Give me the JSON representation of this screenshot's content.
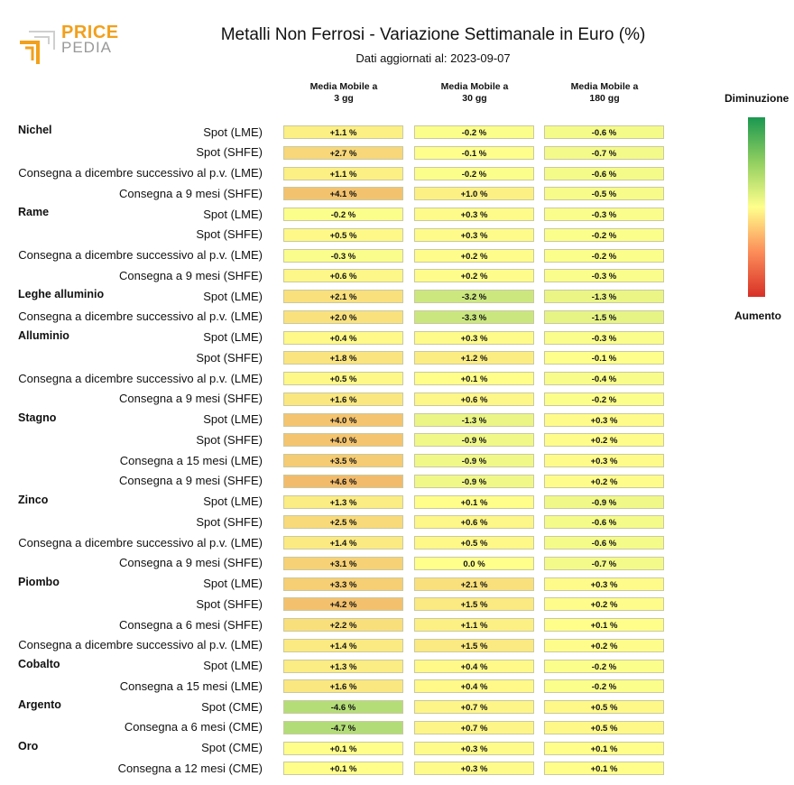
{
  "logo": {
    "line1": "PRICE",
    "line2": "PEDIA"
  },
  "chart_data": {
    "type": "table",
    "title": "Metalli Non Ferrosi - Variazione Settimanale in Euro (%)",
    "subtitle": "Dati aggiornati al: 2023-09-07",
    "columns": [
      {
        "line1": "Media Mobile a",
        "line2": "3 gg"
      },
      {
        "line1": "Media Mobile a",
        "line2": "30 gg"
      },
      {
        "line1": "Media Mobile a",
        "line2": "180 gg"
      }
    ],
    "legend": {
      "top": "Diminuzione",
      "bottom": "Aumento",
      "top_color": "#1a9850",
      "mid_color": "#ffff8c",
      "bottom_color": "#d73027"
    },
    "groups": [
      {
        "metal": "Nichel",
        "rows": [
          {
            "label": "Spot (LME)",
            "values": [
              1.1,
              -0.2,
              -0.6
            ],
            "text": [
              "+1.1 %",
              "-0.2 %",
              "-0.6 %"
            ]
          },
          {
            "label": "Spot (SHFE)",
            "values": [
              2.7,
              -0.1,
              -0.7
            ],
            "text": [
              "+2.7 %",
              "-0.1 %",
              "-0.7 %"
            ]
          },
          {
            "label": "Consegna a dicembre successivo al p.v. (LME)",
            "values": [
              1.1,
              -0.2,
              -0.6
            ],
            "text": [
              "+1.1 %",
              "-0.2 %",
              "-0.6 %"
            ]
          },
          {
            "label": "Consegna a 9 mesi (SHFE)",
            "values": [
              4.1,
              1.0,
              -0.5
            ],
            "text": [
              "+4.1 %",
              "+1.0 %",
              "-0.5 %"
            ]
          }
        ]
      },
      {
        "metal": "Rame",
        "rows": [
          {
            "label": "Spot (LME)",
            "values": [
              -0.2,
              0.3,
              -0.3
            ],
            "text": [
              "-0.2 %",
              "+0.3 %",
              "-0.3 %"
            ]
          },
          {
            "label": "Spot (SHFE)",
            "values": [
              0.5,
              0.3,
              -0.2
            ],
            "text": [
              "+0.5 %",
              "+0.3 %",
              "-0.2 %"
            ]
          },
          {
            "label": "Consegna a dicembre successivo al p.v. (LME)",
            "values": [
              -0.3,
              0.2,
              -0.2
            ],
            "text": [
              "-0.3 %",
              "+0.2 %",
              "-0.2 %"
            ]
          },
          {
            "label": "Consegna a 9 mesi (SHFE)",
            "values": [
              0.6,
              0.2,
              -0.3
            ],
            "text": [
              "+0.6 %",
              "+0.2 %",
              "-0.3 %"
            ]
          }
        ]
      },
      {
        "metal": "Leghe alluminio",
        "rows": [
          {
            "label": "Spot (LME)",
            "values": [
              2.1,
              -3.2,
              -1.3
            ],
            "text": [
              "+2.1 %",
              "-3.2 %",
              "-1.3 %"
            ]
          },
          {
            "label": "Consegna a dicembre successivo al p.v. (LME)",
            "values": [
              2.0,
              -3.3,
              -1.5
            ],
            "text": [
              "+2.0 %",
              "-3.3 %",
              "-1.5 %"
            ]
          }
        ]
      },
      {
        "metal": "Alluminio",
        "rows": [
          {
            "label": "Spot (LME)",
            "values": [
              0.4,
              0.3,
              -0.3
            ],
            "text": [
              "+0.4 %",
              "+0.3 %",
              "-0.3 %"
            ]
          },
          {
            "label": "Spot (SHFE)",
            "values": [
              1.8,
              1.2,
              -0.1
            ],
            "text": [
              "+1.8 %",
              "+1.2 %",
              "-0.1 %"
            ]
          },
          {
            "label": "Consegna a dicembre successivo al p.v. (LME)",
            "values": [
              0.5,
              0.1,
              -0.4
            ],
            "text": [
              "+0.5 %",
              "+0.1 %",
              "-0.4 %"
            ]
          },
          {
            "label": "Consegna a 9 mesi (SHFE)",
            "values": [
              1.6,
              0.6,
              -0.2
            ],
            "text": [
              "+1.6 %",
              "+0.6 %",
              "-0.2 %"
            ]
          }
        ]
      },
      {
        "metal": "Stagno",
        "rows": [
          {
            "label": "Spot (LME)",
            "values": [
              4.0,
              -1.3,
              0.3
            ],
            "text": [
              "+4.0 %",
              "-1.3 %",
              "+0.3 %"
            ]
          },
          {
            "label": "Spot (SHFE)",
            "values": [
              4.0,
              -0.9,
              0.2
            ],
            "text": [
              "+4.0 %",
              "-0.9 %",
              "+0.2 %"
            ]
          },
          {
            "label": "Consegna a 15 mesi (LME)",
            "values": [
              3.5,
              -0.9,
              0.3
            ],
            "text": [
              "+3.5 %",
              "-0.9 %",
              "+0.3 %"
            ]
          },
          {
            "label": "Consegna a 9 mesi (SHFE)",
            "values": [
              4.6,
              -0.9,
              0.2
            ],
            "text": [
              "+4.6 %",
              "-0.9 %",
              "+0.2 %"
            ]
          }
        ]
      },
      {
        "metal": "Zinco",
        "rows": [
          {
            "label": "Spot (LME)",
            "values": [
              1.3,
              0.1,
              -0.9
            ],
            "text": [
              "+1.3 %",
              "+0.1 %",
              "-0.9 %"
            ]
          },
          {
            "label": "Spot (SHFE)",
            "values": [
              2.5,
              0.6,
              -0.6
            ],
            "text": [
              "+2.5 %",
              "+0.6 %",
              "-0.6 %"
            ]
          },
          {
            "label": "Consegna a dicembre successivo al p.v. (LME)",
            "values": [
              1.4,
              0.5,
              -0.6
            ],
            "text": [
              "+1.4 %",
              "+0.5 %",
              "-0.6 %"
            ]
          },
          {
            "label": "Consegna a 9 mesi (SHFE)",
            "values": [
              3.1,
              0.0,
              -0.7
            ],
            "text": [
              "+3.1 %",
              "0.0 %",
              "-0.7 %"
            ]
          }
        ]
      },
      {
        "metal": "Piombo",
        "rows": [
          {
            "label": "Spot (LME)",
            "values": [
              3.3,
              2.1,
              0.3
            ],
            "text": [
              "+3.3 %",
              "+2.1 %",
              "+0.3 %"
            ]
          },
          {
            "label": "Spot (SHFE)",
            "values": [
              4.2,
              1.5,
              0.2
            ],
            "text": [
              "+4.2 %",
              "+1.5 %",
              "+0.2 %"
            ]
          },
          {
            "label": "Consegna a 6 mesi (SHFE)",
            "values": [
              2.2,
              1.1,
              0.1
            ],
            "text": [
              "+2.2 %",
              "+1.1 %",
              "+0.1 %"
            ]
          },
          {
            "label": "Consegna a dicembre successivo al p.v. (LME)",
            "values": [
              1.4,
              1.5,
              0.2
            ],
            "text": [
              "+1.4 %",
              "+1.5 %",
              "+0.2 %"
            ]
          }
        ]
      },
      {
        "metal": "Cobalto",
        "rows": [
          {
            "label": "Spot (LME)",
            "values": [
              1.3,
              0.4,
              -0.2
            ],
            "text": [
              "+1.3 %",
              "+0.4 %",
              "-0.2 %"
            ]
          },
          {
            "label": "Consegna a 15 mesi (LME)",
            "values": [
              1.6,
              0.4,
              -0.2
            ],
            "text": [
              "+1.6 %",
              "+0.4 %",
              "-0.2 %"
            ]
          }
        ]
      },
      {
        "metal": "Argento",
        "rows": [
          {
            "label": "Spot (CME)",
            "values": [
              -4.6,
              0.7,
              0.5
            ],
            "text": [
              "-4.6 %",
              "+0.7 %",
              "+0.5 %"
            ]
          },
          {
            "label": "Consegna a 6 mesi (CME)",
            "values": [
              -4.7,
              0.7,
              0.5
            ],
            "text": [
              "-4.7 %",
              "+0.7 %",
              "+0.5 %"
            ]
          }
        ]
      },
      {
        "metal": "Oro",
        "rows": [
          {
            "label": "Spot (CME)",
            "values": [
              0.1,
              0.3,
              0.1
            ],
            "text": [
              "+0.1 %",
              "+0.3 %",
              "+0.1 %"
            ]
          },
          {
            "label": "Consegna a 12 mesi (CME)",
            "values": [
              0.1,
              0.3,
              0.1
            ],
            "text": [
              "+0.1 %",
              "+0.3 %",
              "+0.1 %"
            ]
          }
        ]
      }
    ]
  }
}
